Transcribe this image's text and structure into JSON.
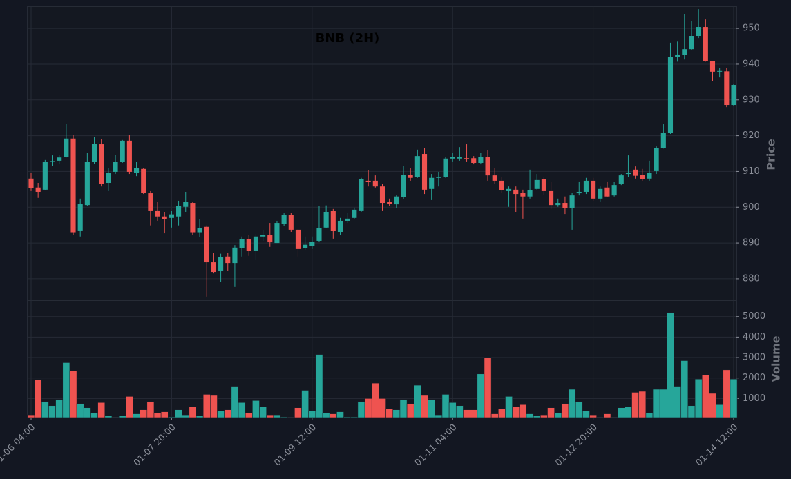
{
  "chart_data": {
    "type": "candlestick",
    "title": "BNB (2H)",
    "y_label": "Price",
    "y2_label": "Volume",
    "up_color": "#26a69a",
    "down_color": "#ef5350",
    "grid": true,
    "x": [
      "01-06 04:00",
      "01-06 06:00",
      "01-06 08:00",
      "01-06 10:00",
      "01-06 12:00",
      "01-06 14:00",
      "01-06 16:00",
      "01-06 18:00",
      "01-06 20:00",
      "01-06 22:00",
      "01-07 00:00",
      "01-07 02:00",
      "01-07 04:00",
      "01-07 06:00",
      "01-07 08:00",
      "01-07 10:00",
      "01-07 12:00",
      "01-07 14:00",
      "01-07 16:00",
      "01-07 18:00",
      "01-07 20:00",
      "01-07 22:00",
      "01-08 00:00",
      "01-08 02:00",
      "01-08 04:00",
      "01-08 06:00",
      "01-08 08:00",
      "01-08 10:00",
      "01-08 12:00",
      "01-08 14:00",
      "01-08 16:00",
      "01-08 18:00",
      "01-08 20:00",
      "01-08 22:00",
      "01-09 00:00",
      "01-09 02:00",
      "01-09 04:00",
      "01-09 06:00",
      "01-09 08:00",
      "01-09 10:00",
      "01-09 12:00",
      "01-09 14:00",
      "01-09 16:00",
      "01-09 18:00",
      "01-09 20:00",
      "01-09 22:00",
      "01-10 00:00",
      "01-10 02:00",
      "01-10 04:00",
      "01-10 06:00",
      "01-10 08:00",
      "01-10 10:00",
      "01-10 12:00",
      "01-10 14:00",
      "01-10 16:00",
      "01-10 18:00",
      "01-10 20:00",
      "01-10 22:00",
      "01-11 00:00",
      "01-11 02:00",
      "01-11 04:00",
      "01-11 06:00",
      "01-11 08:00",
      "01-11 10:00",
      "01-11 12:00",
      "01-11 14:00",
      "01-11 16:00",
      "01-11 18:00",
      "01-11 20:00",
      "01-11 22:00",
      "01-12 00:00",
      "01-12 02:00",
      "01-12 04:00",
      "01-12 06:00",
      "01-12 08:00",
      "01-12 10:00",
      "01-12 12:00",
      "01-12 14:00",
      "01-12 16:00",
      "01-12 18:00",
      "01-12 20:00",
      "01-12 22:00",
      "01-13 00:00",
      "01-13 02:00",
      "01-13 04:00",
      "01-13 06:00",
      "01-13 08:00",
      "01-13 10:00",
      "01-13 12:00",
      "01-13 14:00",
      "01-13 16:00",
      "01-13 18:00",
      "01-13 20:00",
      "01-13 22:00",
      "01-14 00:00",
      "01-14 02:00",
      "01-14 04:00",
      "01-14 06:00",
      "01-14 08:00",
      "01-14 10:00",
      "01-14 12:00"
    ],
    "open": [
      908,
      905.5,
      904.9,
      912.6,
      913,
      914.1,
      919.2,
      893.5,
      900.6,
      912.6,
      917.6,
      906.8,
      909.9,
      912.6,
      918.6,
      909.7,
      910.7,
      903.9,
      899.1,
      897.4,
      897,
      897.4,
      900.1,
      901.2,
      893,
      894.5,
      884.6,
      882.1,
      886.2,
      884.4,
      888.5,
      891,
      887.9,
      891.8,
      892.3,
      890,
      895.4,
      897.9,
      893.7,
      888.5,
      889.1,
      890.6,
      894.3,
      898.9,
      893.1,
      896.2,
      897,
      899.1,
      907.4,
      907.4,
      905.8,
      901.4,
      900.8,
      902.8,
      909.1,
      908.5,
      914.9,
      905.1,
      908.2,
      908.5,
      913.6,
      913.6,
      913.7,
      913.7,
      912.4,
      914.1,
      908.9,
      907.4,
      904.5,
      904.9,
      904.1,
      903,
      905.1,
      907.8,
      904.5,
      900.6,
      901.2,
      899.7,
      903.9,
      904.3,
      907.4,
      902.4,
      905.5,
      903.3,
      906.6,
      909.3,
      910.5,
      909.1,
      908,
      910.1,
      916.6,
      920.7,
      942.1,
      942.5,
      944.2,
      947.9,
      950.4,
      940.9,
      937.9,
      938,
      928.6
    ],
    "high": [
      909.7,
      906.8,
      913.2,
      914.5,
      914.7,
      923.4,
      920.3,
      902.4,
      915.1,
      919.7,
      919.1,
      911,
      914.7,
      918.8,
      920.3,
      912.6,
      911,
      904.5,
      901.4,
      898.7,
      898.9,
      901.8,
      904.3,
      901.6,
      896.6,
      894.9,
      887.2,
      887,
      887.3,
      889.4,
      891.8,
      892.2,
      892.5,
      893.7,
      895.6,
      896.2,
      898.3,
      898.5,
      893.9,
      891.8,
      891.8,
      900.3,
      900.5,
      899.5,
      897,
      898.5,
      899.9,
      908.2,
      910.3,
      908.9,
      906.6,
      902.4,
      903.3,
      911.6,
      911,
      916.1,
      916.6,
      909.3,
      909.9,
      914,
      915.3,
      916.8,
      917.6,
      914.3,
      915.1,
      915.9,
      911,
      908.5,
      905.8,
      905.8,
      904.9,
      910.5,
      909.3,
      908.5,
      907.2,
      902.4,
      903,
      904.1,
      907.2,
      908.2,
      908.2,
      905.8,
      907.2,
      907,
      909.3,
      914.5,
      911.4,
      910.7,
      913,
      917,
      923.2,
      946,
      946.3,
      954,
      952.1,
      955.4,
      952.5,
      940.9,
      939,
      939,
      934.4
    ],
    "low": [
      904.5,
      902.6,
      904.7,
      911.6,
      912,
      913.9,
      892.3,
      891.8,
      900.4,
      912.2,
      905.8,
      904.5,
      909.3,
      912.4,
      909.3,
      908.7,
      903.7,
      894.9,
      896.2,
      892.7,
      894.3,
      894.9,
      898.7,
      892.3,
      891.6,
      875,
      881.5,
      879.2,
      882.3,
      877.7,
      886.2,
      886.4,
      885.4,
      890.6,
      888.9,
      890,
      894.7,
      893.1,
      886.2,
      888.1,
      888.3,
      890.2,
      894.1,
      891.2,
      892.2,
      895.6,
      896.6,
      898.7,
      905.8,
      905.5,
      899.1,
      900.4,
      899.7,
      902.2,
      907.4,
      908.2,
      903.7,
      902,
      905.8,
      908.2,
      912.8,
      913,
      912.8,
      912,
      912,
      907.4,
      906.6,
      903.9,
      900.1,
      898.7,
      896.8,
      902.4,
      904.9,
      903.5,
      899.5,
      900.1,
      898.1,
      893.7,
      903.3,
      903.7,
      901.8,
      901.6,
      902.8,
      903,
      906.2,
      908.5,
      908,
      907.4,
      907.4,
      909.3,
      916.4,
      920.5,
      940.7,
      941.3,
      944,
      947.3,
      940.7,
      935.2,
      936.3,
      928,
      928.4
    ],
    "close": [
      905.3,
      904.3,
      912.6,
      912.9,
      913.9,
      919.2,
      893,
      901,
      912.6,
      917.8,
      906.6,
      909.7,
      912.6,
      918.6,
      909.9,
      910.9,
      904.1,
      899.1,
      897.4,
      896.6,
      898,
      900.3,
      901.4,
      893,
      894.1,
      884.6,
      881.9,
      886,
      884.4,
      888.7,
      891,
      887.7,
      891.8,
      892.3,
      890.2,
      895.6,
      897.9,
      893.7,
      888.3,
      889.5,
      890.4,
      894.1,
      898.7,
      893.3,
      896.2,
      896.8,
      899.3,
      907.8,
      907,
      905.8,
      901.2,
      901,
      903,
      909.1,
      908.2,
      914.3,
      904.9,
      908.2,
      908.5,
      913.6,
      914.1,
      914,
      913.6,
      912.4,
      914.1,
      908.9,
      907.4,
      904.7,
      905.1,
      903.7,
      903,
      904.7,
      907.6,
      904.5,
      900.6,
      901.2,
      899.7,
      903.3,
      904.3,
      907.4,
      902.4,
      905.1,
      903,
      906.2,
      908.9,
      909.7,
      908.8,
      907.8,
      909.7,
      916.6,
      920.7,
      942.1,
      942.7,
      944.2,
      947.9,
      950.4,
      940.9,
      937.9,
      938.1,
      928.6,
      934.2
    ],
    "volume": [
      200,
      1900,
      850,
      650,
      950,
      2750,
      2350,
      750,
      550,
      300,
      800,
      150,
      50,
      150,
      1100,
      250,
      450,
      850,
      300,
      350,
      100,
      450,
      200,
      600,
      150,
      1200,
      1150,
      400,
      450,
      1600,
      800,
      300,
      900,
      600,
      200,
      200,
      100,
      50,
      550,
      1400,
      400,
      3150,
      300,
      250,
      350,
      100,
      100,
      850,
      1000,
      1750,
      1000,
      500,
      450,
      950,
      750,
      1650,
      1150,
      950,
      200,
      1200,
      800,
      650,
      450,
      450,
      2200,
      3000,
      250,
      500,
      1100,
      600,
      700,
      250,
      150,
      200,
      550,
      300,
      750,
      1450,
      850,
      400,
      200,
      50,
      250,
      50,
      550,
      600,
      1300,
      1350,
      300,
      1450,
      1450,
      5200,
      1600,
      2850,
      650,
      1950,
      2150,
      1250,
      700,
      2400,
      1950
    ],
    "xticks": [
      "01-06 04:00",
      "01-07 20:00",
      "01-09 12:00",
      "01-11 04:00",
      "01-12 20:00",
      "01-14 12:00"
    ],
    "ylim": [
      874,
      956.2
    ],
    "yticks": [
      880,
      890,
      900,
      910,
      920,
      930,
      940,
      950
    ],
    "y2lim": [
      0,
      5800
    ],
    "y2ticks": [
      1000,
      2000,
      3000,
      4000,
      5000
    ]
  }
}
